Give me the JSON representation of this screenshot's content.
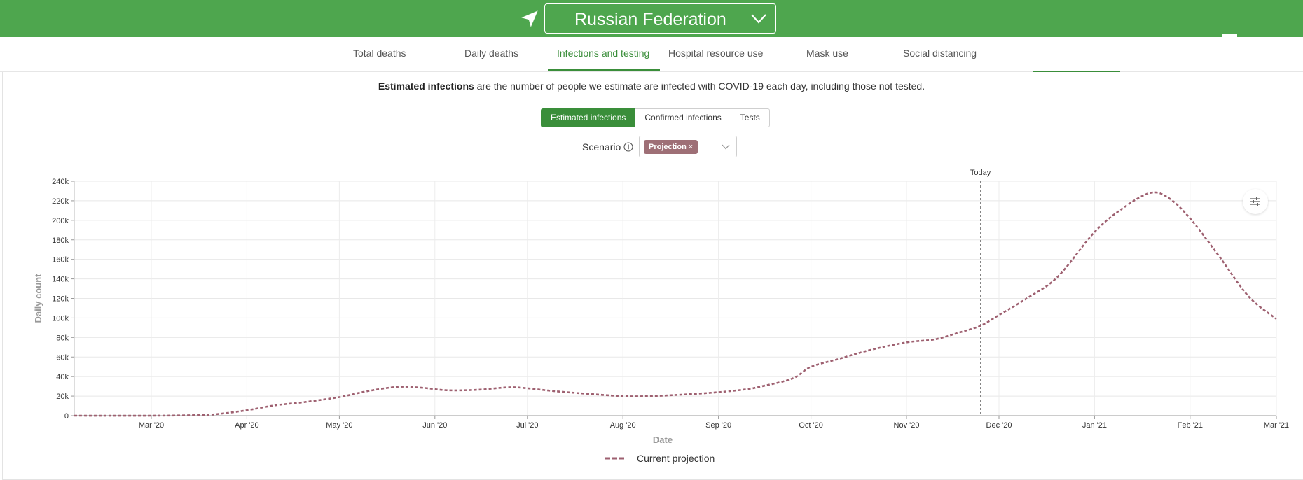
{
  "header": {
    "country": "Russian Federation",
    "icons": {
      "location": "navigation-arrow-icon",
      "dropdown": "chevron-down-icon"
    },
    "colors": {
      "brand": "#4ea64e",
      "accent": "#3a8e3a"
    }
  },
  "tabs": [
    {
      "label": "Total deaths",
      "active": false
    },
    {
      "label": "Daily deaths",
      "active": false
    },
    {
      "label": "Infections and testing",
      "active": true
    },
    {
      "label": "Hospital resource use",
      "active": false
    },
    {
      "label": "Mask use",
      "active": false
    },
    {
      "label": "Social distancing",
      "active": false
    }
  ],
  "description": {
    "bold": "Estimated infections",
    "rest": " are the number of people we estimate are infected with COVID-19 each day, including those not tested."
  },
  "toggles": {
    "options": [
      "Estimated infections",
      "Confirmed infections",
      "Tests"
    ],
    "selected": "Estimated infections"
  },
  "scenario": {
    "label": "Scenario",
    "chip": "Projection",
    "chip_close": "×",
    "chip_color": "#9e6f76",
    "info_icon": "info-circle-icon"
  },
  "settings_icon": "sliders-icon",
  "chart_data": {
    "type": "line",
    "title": "",
    "xlabel": "Date",
    "ylabel": "Daily count",
    "x_ticks": [
      "Mar '20",
      "Apr '20",
      "May '20",
      "Jun '20",
      "Jul '20",
      "Aug '20",
      "Sep '20",
      "Oct '20",
      "Nov '20",
      "Dec '20",
      "Jan '21",
      "Feb '21",
      "Mar '21"
    ],
    "x_range": [
      "2020-02-05",
      "2021-03-01"
    ],
    "y_ticks": [
      "0",
      "20k",
      "40k",
      "60k",
      "80k",
      "100k",
      "120k",
      "140k",
      "160k",
      "180k",
      "200k",
      "220k",
      "240k"
    ],
    "ylim": [
      0,
      240000
    ],
    "grid": true,
    "today": {
      "label": "Today",
      "date": "2020-11-25"
    },
    "legend_position": "bottom-center",
    "series": [
      {
        "name": "Current projection",
        "color": "#9e6070",
        "style": "dashed",
        "points": [
          [
            "2020-02-05",
            0
          ],
          [
            "2020-03-01",
            0
          ],
          [
            "2020-03-15",
            500
          ],
          [
            "2020-03-22",
            1500
          ],
          [
            "2020-04-01",
            5500
          ],
          [
            "2020-04-10",
            10500
          ],
          [
            "2020-04-20",
            14000
          ],
          [
            "2020-05-01",
            19000
          ],
          [
            "2020-05-10",
            25000
          ],
          [
            "2020-05-20",
            29500
          ],
          [
            "2020-05-28",
            28500
          ],
          [
            "2020-06-05",
            26000
          ],
          [
            "2020-06-15",
            26500
          ],
          [
            "2020-06-25",
            29000
          ],
          [
            "2020-07-01",
            28000
          ],
          [
            "2020-07-10",
            25000
          ],
          [
            "2020-07-20",
            22500
          ],
          [
            "2020-08-01",
            20000
          ],
          [
            "2020-08-10",
            20000
          ],
          [
            "2020-08-20",
            21500
          ],
          [
            "2020-09-01",
            24000
          ],
          [
            "2020-09-10",
            27000
          ],
          [
            "2020-09-15",
            30000
          ],
          [
            "2020-09-25",
            38000
          ],
          [
            "2020-10-01",
            50000
          ],
          [
            "2020-10-10",
            58000
          ],
          [
            "2020-10-20",
            67000
          ],
          [
            "2020-11-01",
            75000
          ],
          [
            "2020-11-10",
            78000
          ],
          [
            "2020-11-18",
            85000
          ],
          [
            "2020-11-25",
            92000
          ],
          [
            "2020-12-01",
            103000
          ],
          [
            "2020-12-10",
            120000
          ],
          [
            "2020-12-20",
            142000
          ],
          [
            "2021-01-01",
            188000
          ],
          [
            "2021-01-10",
            212000
          ],
          [
            "2021-01-19",
            228000
          ],
          [
            "2021-01-25",
            223000
          ],
          [
            "2021-02-01",
            202000
          ],
          [
            "2021-02-10",
            165000
          ],
          [
            "2021-02-20",
            122000
          ],
          [
            "2021-03-01",
            99000
          ]
        ]
      }
    ]
  }
}
